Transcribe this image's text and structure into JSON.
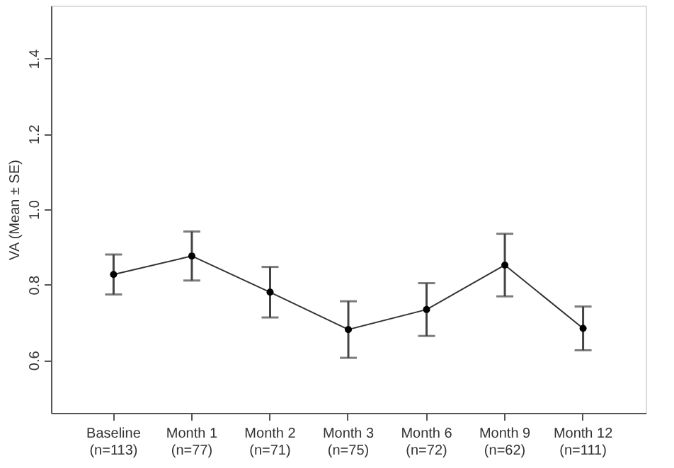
{
  "chart_data": {
    "type": "line",
    "ylabel": "VA (Mean ± SE)",
    "categories": [
      "Baseline\n(n=113)",
      "Month 1\n(n=77)",
      "Month 2\n(n=71)",
      "Month 3\n(n=75)",
      "Month 6\n(n=72)",
      "Month 9\n(n=62)",
      "Month 12\n(n=111)"
    ],
    "series": [
      {
        "color": "#000000",
        "values": [
          0.827,
          0.876,
          0.78,
          0.681,
          0.734,
          0.852,
          0.684
        ],
        "errors": [
          0.053,
          0.065,
          0.067,
          0.075,
          0.07,
          0.083,
          0.058
        ]
      }
    ],
    "ylim": [
      0.46,
      1.54
    ],
    "yticks": [
      0.6,
      0.8,
      {
        "value": 1.0,
        "label": "1.0"
      },
      1.2,
      1.4
    ],
    "marker": "circle",
    "line_style": "solid",
    "grid": false
  }
}
